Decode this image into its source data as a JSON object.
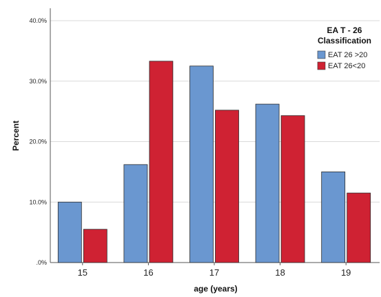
{
  "chart_data": {
    "type": "bar",
    "xlabel": "age (years)",
    "ylabel": "Percent",
    "categories": [
      "15",
      "16",
      "17",
      "18",
      "19"
    ],
    "y_ticks": [
      ".0%",
      "10.0%",
      "20.0%",
      "30.0%",
      "40.0%"
    ],
    "ylim": [
      0,
      40
    ],
    "grid": true,
    "legend": {
      "title_line1": "EA T - 26",
      "title_line2": "Classification",
      "placement": "top-right"
    },
    "series": [
      {
        "name": "EAT 26 >20",
        "color": "#6a97d0",
        "values": [
          10.0,
          16.2,
          32.5,
          26.2,
          15.0
        ]
      },
      {
        "name": "EAT 26<20",
        "color": "#cf2233",
        "values": [
          5.5,
          33.3,
          25.2,
          24.3,
          11.5
        ]
      }
    ]
  }
}
